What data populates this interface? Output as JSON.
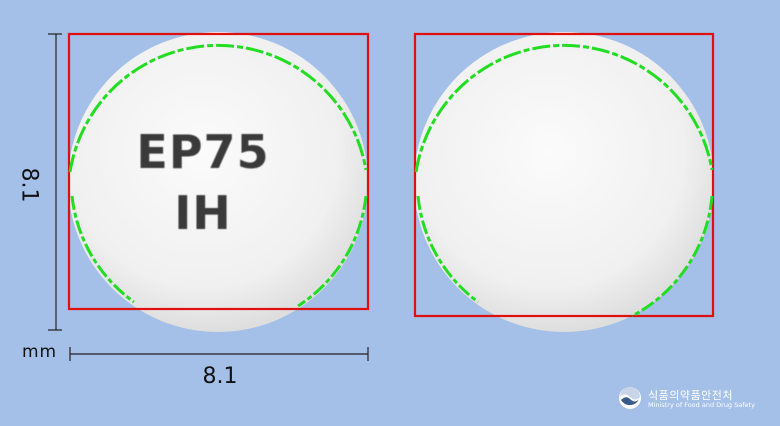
{
  "measurements": {
    "height_value": "8.1",
    "width_value": "8.1",
    "unit": "mm"
  },
  "pill_front": {
    "imprint_line1": "EP75",
    "imprint_line2": "IH"
  },
  "logo": {
    "korean_name": "식품의약품안전처",
    "english_name": "Ministry of Food and Drug Safety"
  },
  "colors": {
    "background": "#a4bfe8",
    "bounding_box": "#e01010",
    "contour": "#22dd22",
    "pill": "#f4f4f4"
  }
}
